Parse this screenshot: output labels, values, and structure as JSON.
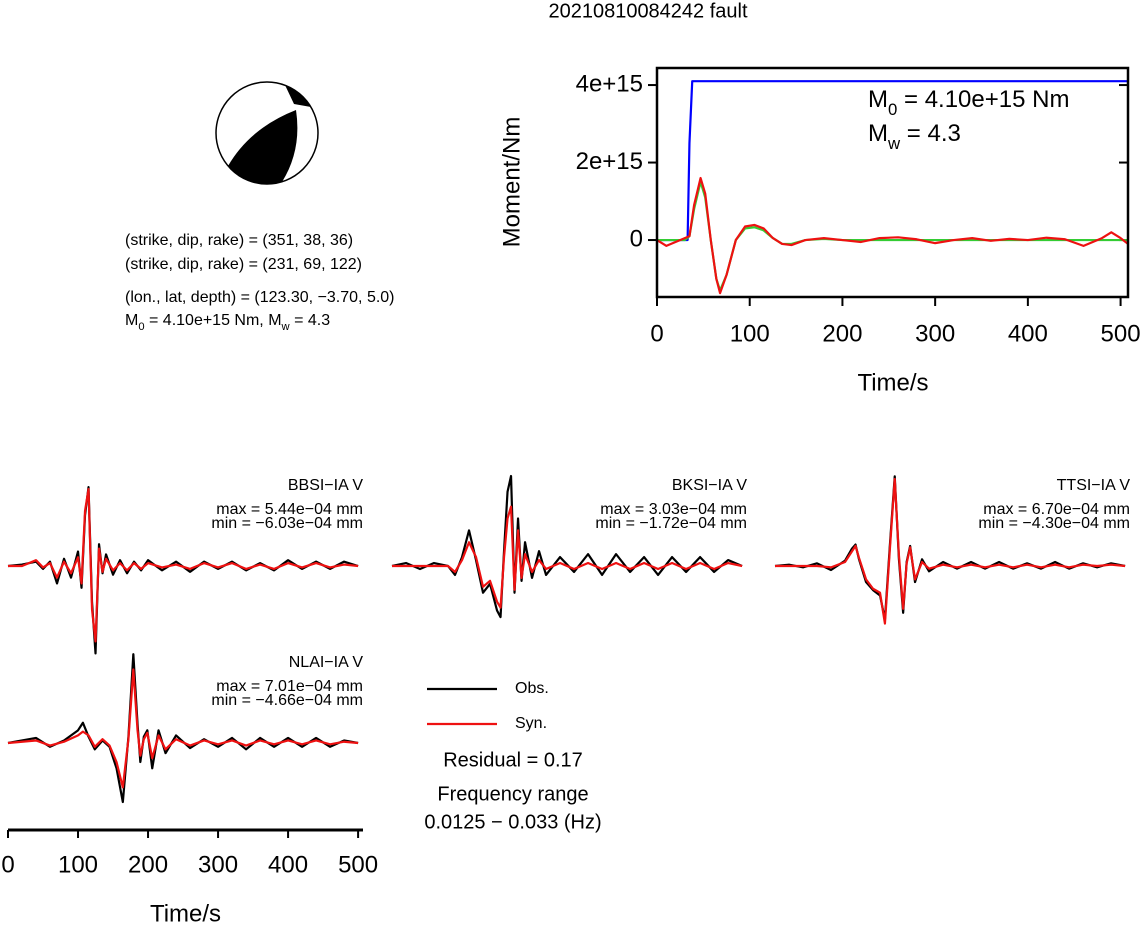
{
  "title": "20210810084242 fault",
  "mechanism": [
    "(strike, dip, rake) = (351, 38, 36)",
    "(strike, dip, rake) = (231, 69, 122)",
    "(lon., lat, depth) = (123.30, −3.70, 5.0)",
    [
      "M",
      "0",
      " = 4.10e+15 Nm, ",
      "M",
      "w",
      " = 4.3"
    ]
  ],
  "residual": "Residual = 0.17",
  "frequency_range": [
    "Frequency range",
    "0.0125 − 0.033 (Hz)"
  ],
  "chart_data": [
    {
      "type": "line",
      "ylabel": "Moment/Nm",
      "xlabel": "Time/s",
      "annotations": [
        [
          "M",
          "0",
          " = 4.10e+15 Nm"
        ],
        [
          "M",
          "w",
          " = 4.3"
        ]
      ],
      "xlim": [
        0,
        508
      ],
      "xticks": [
        0,
        100,
        200,
        300,
        400,
        500
      ],
      "ylim": [
        -1470000000000000.0,
        4440000000000000.0
      ],
      "yticks": [
        0,
        {
          "value": 2000000000000000.0,
          "label": "2e+15"
        },
        {
          "value": 4000000000000000.0,
          "label": "4e+15"
        }
      ],
      "series": [
        {
          "color": "#0000ff",
          "x": [
            0,
            33,
            35,
            38,
            508
          ],
          "values": [
            0,
            0,
            2500000000000000.0,
            4100000000000000.0,
            4100000000000000.0
          ]
        },
        {
          "color": "#33cc33",
          "x": [
            0,
            30,
            35,
            40,
            47,
            52,
            58,
            64,
            68,
            75,
            85,
            95,
            105,
            115,
            125,
            135,
            145,
            160,
            180,
            200,
            508
          ],
          "values": [
            0,
            0,
            100000000000000.0,
            800000000000000.0,
            1500000000000000.0,
            1100000000000000.0,
            0,
            -1000000000000000.0,
            -1300000000000000.0,
            -900000000000000.0,
            0,
            300000000000000.0,
            330000000000000.0,
            250000000000000.0,
            50000000000000.0,
            -100000000000000.0,
            -100000000000000.0,
            0,
            30000000000000.0,
            0,
            0
          ]
        },
        {
          "color": "#ee1111",
          "x": [
            0,
            10,
            20,
            30,
            35,
            40,
            47,
            52,
            58,
            64,
            68,
            75,
            85,
            95,
            105,
            115,
            125,
            135,
            145,
            160,
            180,
            200,
            220,
            240,
            260,
            280,
            300,
            320,
            340,
            360,
            380,
            400,
            420,
            440,
            460,
            480,
            490,
            500,
            508
          ],
          "values": [
            0,
            -150000000000000.0,
            -50000000000000.0,
            50000000000000.0,
            100000000000000.0,
            900000000000000.0,
            1600000000000000.0,
            1200000000000000.0,
            0,
            -1000000000000000.0,
            -1370000000000000.0,
            -900000000000000.0,
            0,
            350000000000000.0,
            390000000000000.0,
            300000000000000.0,
            50000000000000.0,
            -100000000000000.0,
            -130000000000000.0,
            0,
            50000000000000.0,
            0,
            -50000000000000.0,
            50000000000000.0,
            70000000000000.0,
            20000000000000.0,
            -80000000000000.0,
            0,
            50000000000000.0,
            -20000000000000.0,
            30000000000000.0,
            0,
            60000000000000.0,
            20000000000000.0,
            -150000000000000.0,
            50000000000000.0,
            200000000000000.0,
            50000000000000.0,
            -100000000000000.0
          ]
        }
      ]
    },
    {
      "type": "line",
      "title": "BBSI−IA V",
      "max_text": "max = 5.44e−04 mm",
      "min_text": "min = −6.03e−04 mm",
      "xlim": [
        0,
        507
      ],
      "ylim": [
        -0.000655,
        0.000655
      ],
      "x": [
        0,
        20,
        40,
        50,
        60,
        70,
        80,
        90,
        100,
        105,
        110,
        115,
        120,
        125,
        130,
        135,
        140,
        150,
        160,
        170,
        180,
        190,
        200,
        220,
        240,
        260,
        280,
        300,
        320,
        340,
        360,
        380,
        400,
        420,
        440,
        460,
        480,
        500
      ],
      "series": [
        {
          "name": "Obs.",
          "color": "#000000",
          "values": [
            0,
            1e-05,
            3e-05,
            -2e-05,
            3e-05,
            -0.00012,
            5e-05,
            -8e-05,
            0.0001,
            -0.00015,
            0.00035,
            0.000544,
            -0.00025,
            -0.000603,
            0.00015,
            -5e-05,
            8e-05,
            -6e-05,
            4e-05,
            -5e-05,
            3e-05,
            -3e-05,
            4e-05,
            -3e-05,
            3e-05,
            -4e-05,
            3e-05,
            -2e-05,
            3e-05,
            -3e-05,
            2e-05,
            -3e-05,
            4e-05,
            -2e-05,
            3e-05,
            -2e-05,
            3e-05,
            0
          ]
        },
        {
          "name": "Syn.",
          "color": "#ee1111",
          "values": [
            0,
            0,
            4e-05,
            -1e-05,
            2e-05,
            -8e-05,
            3e-05,
            -5e-05,
            6e-05,
            -0.00012,
            0.00038,
            0.00053,
            -0.0003,
            -0.00052,
            0.00012,
            -4e-05,
            5e-05,
            -3e-05,
            2e-05,
            -3e-05,
            2e-05,
            -2e-05,
            2e-05,
            -1e-05,
            1e-05,
            -2e-05,
            2e-05,
            -1e-05,
            2e-05,
            -2e-05,
            1e-05,
            -2e-05,
            2e-05,
            -1e-05,
            2e-05,
            -1e-05,
            1e-05,
            0
          ]
        }
      ]
    },
    {
      "type": "line",
      "title": "BKSI−IA V",
      "max_text": "max = 3.03e−04 mm",
      "min_text": "min = −1.72e−04 mm",
      "xlim": [
        0,
        507
      ],
      "ylim": [
        -0.00032,
        0.00032
      ],
      "x": [
        0,
        20,
        40,
        60,
        80,
        90,
        100,
        110,
        120,
        130,
        140,
        150,
        155,
        160,
        165,
        170,
        175,
        180,
        185,
        190,
        200,
        210,
        220,
        240,
        260,
        280,
        300,
        320,
        340,
        360,
        380,
        400,
        420,
        440,
        460,
        480,
        500
      ],
      "series": [
        {
          "name": "Obs.",
          "color": "#000000",
          "values": [
            0,
            1e-05,
            -1e-05,
            1e-05,
            0,
            -3e-05,
            3e-05,
            0.00012,
            2e-05,
            -9e-05,
            -6e-05,
            -0.00015,
            -0.000172,
            5e-05,
            0.00025,
            0.000303,
            -9e-05,
            0.00016,
            -5e-05,
            8e-05,
            -4e-05,
            5e-05,
            -3e-05,
            3e-05,
            -2e-05,
            4e-05,
            -3e-05,
            4e-05,
            -2e-05,
            3e-05,
            -3e-05,
            3e-05,
            -2e-05,
            3e-05,
            -2e-05,
            2e-05,
            0
          ]
        },
        {
          "name": "Syn.",
          "color": "#ee1111",
          "values": [
            0,
            0,
            0,
            0,
            0,
            -2e-05,
            2e-05,
            8e-05,
            3e-05,
            -7e-05,
            -5e-05,
            -0.00012,
            -0.00014,
            3e-05,
            0.00016,
            0.0002,
            -8e-05,
            0.00012,
            -4e-05,
            4e-05,
            -2e-05,
            2e-05,
            -1e-05,
            1e-05,
            -1e-05,
            1e-05,
            -1e-05,
            1e-05,
            -1e-05,
            1e-05,
            -1e-05,
            1e-05,
            -1e-05,
            1e-05,
            -1e-05,
            1e-05,
            0
          ]
        }
      ]
    },
    {
      "type": "line",
      "title": "TTSI−IA V",
      "max_text": "max = 6.70e−04 mm",
      "min_text": "min = −4.30e−04 mm",
      "xlim": [
        0,
        507
      ],
      "ylim": [
        -0.00071,
        0.00071
      ],
      "x": [
        0,
        20,
        40,
        60,
        80,
        100,
        110,
        115,
        120,
        130,
        140,
        150,
        157,
        164,
        171,
        177,
        183,
        188,
        193,
        200,
        210,
        220,
        240,
        260,
        280,
        300,
        320,
        340,
        360,
        380,
        400,
        420,
        440,
        460,
        480,
        500
      ],
      "series": [
        {
          "name": "Obs.",
          "color": "#000000",
          "values": [
            0,
            1e-05,
            -1e-05,
            2e-05,
            -3e-05,
            4e-05,
            0.00013,
            0.00016,
            5e-05,
            -0.00012,
            -0.00018,
            -0.00022,
            -0.0004,
            0.00015,
            0.00067,
            5e-05,
            -0.00035,
            3e-05,
            0.00015,
            -0.00012,
            5e-05,
            -4e-05,
            3e-05,
            -2e-05,
            3e-05,
            -2e-05,
            3e-05,
            -2e-05,
            2e-05,
            -2e-05,
            3e-05,
            -2e-05,
            2e-05,
            -1e-05,
            2e-05,
            0
          ]
        },
        {
          "name": "Syn.",
          "color": "#ee1111",
          "values": [
            0,
            0,
            0,
            0,
            -1e-05,
            3e-05,
            0.00011,
            0.00015,
            6e-05,
            -0.0001,
            -0.00017,
            -0.0002,
            -0.00043,
            0.00012,
            0.00065,
            8e-05,
            -0.00032,
            2e-05,
            0.00014,
            -0.0001,
            3e-05,
            -2e-05,
            1e-05,
            -1e-05,
            1e-05,
            -1e-05,
            1e-05,
            -1e-05,
            1e-05,
            -1e-05,
            1e-05,
            -1e-05,
            1e-05,
            0,
            1e-05,
            0
          ]
        }
      ]
    },
    {
      "type": "line",
      "title": "NLAI−IA V",
      "max_text": "max = 7.01e−04 mm",
      "min_text": "min = −4.66e−04 mm",
      "xlabel": "Time/s",
      "xlim": [
        0,
        507
      ],
      "xticks": [
        0,
        100,
        200,
        300,
        400,
        500
      ],
      "ylim": [
        -0.00075,
        0.00075
      ],
      "x": [
        0,
        20,
        40,
        60,
        80,
        100,
        107,
        115,
        124,
        135,
        145,
        155,
        164,
        172,
        179,
        185,
        189,
        194,
        199,
        206,
        215,
        225,
        240,
        260,
        280,
        300,
        320,
        340,
        360,
        380,
        400,
        420,
        440,
        460,
        480,
        500
      ],
      "series": [
        {
          "name": "Obs.",
          "color": "#000000",
          "values": [
            0,
            2e-05,
            4e-05,
            -3e-05,
            2e-05,
            0.0001,
            0.00016,
            5e-05,
            -5e-05,
            2e-05,
            -3e-05,
            -0.0002,
            -0.000466,
            5e-05,
            0.000701,
            0.00015,
            -0.00015,
            5e-05,
            0.0001,
            -0.0002,
            0.0001,
            -8e-05,
            6e-05,
            -4e-05,
            3e-05,
            -3e-05,
            4e-05,
            -5e-05,
            4e-05,
            -3e-05,
            4e-05,
            -3e-05,
            4e-05,
            -3e-05,
            2e-05,
            0
          ]
        },
        {
          "name": "Syn.",
          "color": "#ee1111",
          "values": [
            0,
            1e-05,
            2e-05,
            -2e-05,
            1e-05,
            6e-05,
            9e-05,
            6e-05,
            -3e-05,
            3e-05,
            -2e-05,
            -0.00015,
            -0.00035,
            3e-05,
            0.00058,
            0.0001,
            -0.0001,
            3e-05,
            8e-05,
            -0.00012,
            6e-05,
            -5e-05,
            3e-05,
            -2e-05,
            2e-05,
            -1e-05,
            2e-05,
            -2e-05,
            2e-05,
            -1e-05,
            2e-05,
            -1e-05,
            2e-05,
            -1e-05,
            1e-05,
            0
          ]
        }
      ]
    }
  ]
}
